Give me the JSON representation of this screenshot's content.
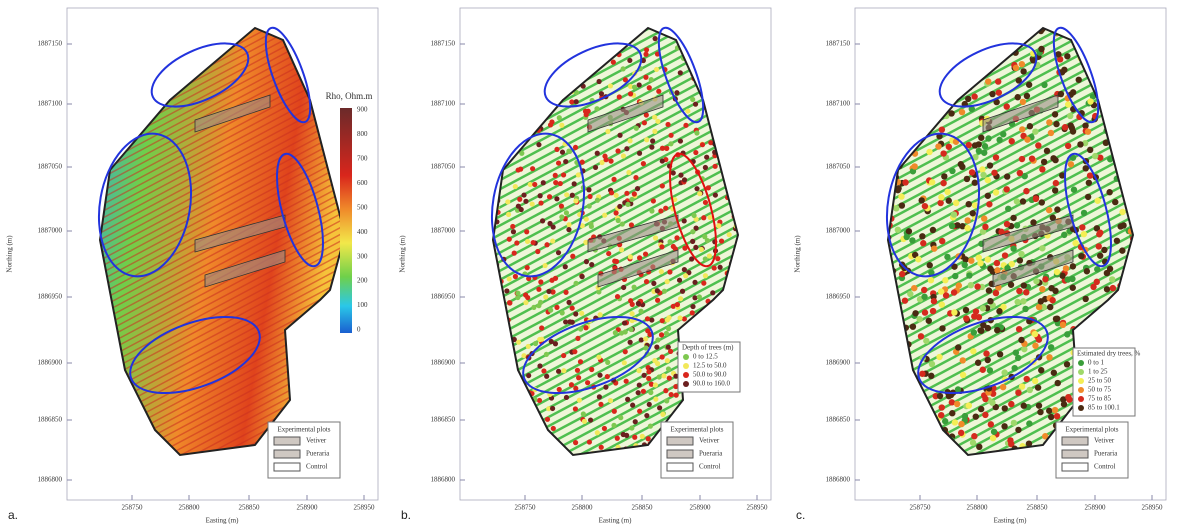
{
  "panels": [
    {
      "label": "a.",
      "y_axis_title": "Northing (m)",
      "x_axis_title": "Easting (m)",
      "yticks": [
        "1887150",
        "1887100",
        "1887050",
        "1887000",
        "1886950",
        "1886900",
        "1886850",
        "1886800"
      ],
      "xticks": [
        "258750",
        "258800",
        "258850",
        "258900",
        "258950"
      ],
      "legend": {
        "title": "Experimental plots",
        "items": [
          "Vetiver",
          "Pueraria",
          "Control"
        ]
      },
      "colorbar": {
        "title": "Rho, Ohm.m",
        "ticks": [
          "0",
          "100",
          "200",
          "300",
          "400",
          "500",
          "600",
          "700",
          "800",
          "900"
        ]
      }
    },
    {
      "label": "b.",
      "y_axis_title": "Northing (m)",
      "x_axis_title": "Easting (m)",
      "yticks": [
        "1887150",
        "1887100",
        "1887050",
        "1887000",
        "1886950",
        "1886900",
        "1886850",
        "1886800"
      ],
      "xticks": [
        "258750",
        "258800",
        "258850",
        "258900",
        "258950"
      ],
      "legend": {
        "title": "Experimental plots",
        "items": [
          "Vetiver",
          "Pueraria",
          "Control"
        ]
      },
      "class_legend": {
        "title": "Depth of trees (m)",
        "items": [
          {
            "label": "0 to 12.5",
            "color": "#7ec850"
          },
          {
            "label": "12.5 to 50.0",
            "color": "#f2e85a"
          },
          {
            "label": "50.0 to 90.0",
            "color": "#d9261c"
          },
          {
            "label": "90.0 to 160.0",
            "color": "#6b1f1f"
          }
        ]
      }
    },
    {
      "label": "c.",
      "y_axis_title": "Northing (m)",
      "x_axis_title": "Easting (m)",
      "yticks": [
        "1887150",
        "1887100",
        "1887050",
        "1887000",
        "1886950",
        "1886900",
        "1886850",
        "1886800"
      ],
      "xticks": [
        "258750",
        "258800",
        "258850",
        "258900",
        "258950"
      ],
      "legend": {
        "title": "Experimental plots",
        "items": [
          "Vetiver",
          "Pueraria",
          "Control"
        ]
      },
      "class_legend": {
        "title": "Estimated dry trees, %",
        "items": [
          {
            "label": "0 to 1",
            "color": "#3a9e3a"
          },
          {
            "label": "1 to 25",
            "color": "#9fd86a"
          },
          {
            "label": "25 to 50",
            "color": "#f4ee55"
          },
          {
            "label": "50 to 75",
            "color": "#f08a2a"
          },
          {
            "label": "75 to 85",
            "color": "#d52a1e"
          },
          {
            "label": "85 to 100.1",
            "color": "#4a2a12"
          }
        ]
      }
    }
  ]
}
